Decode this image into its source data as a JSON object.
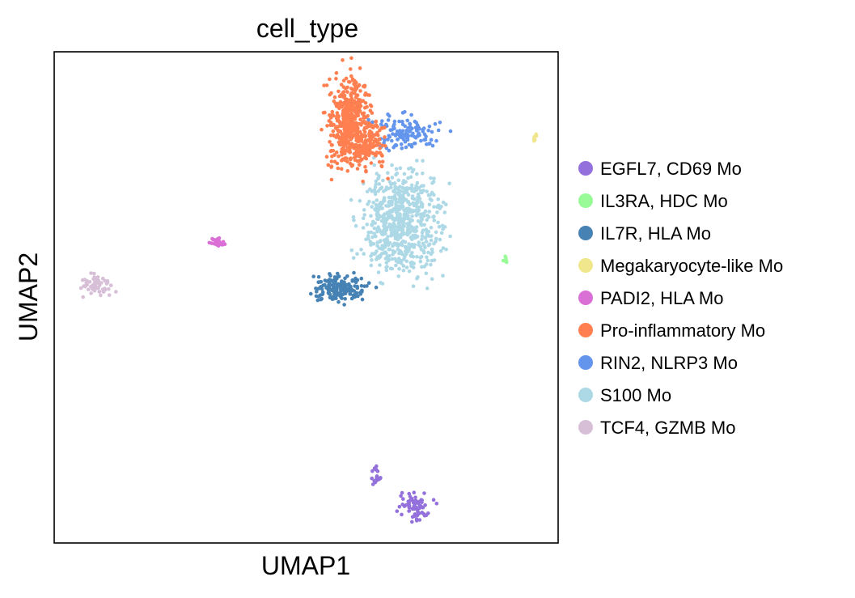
{
  "chart_data": {
    "type": "scatter",
    "title": "cell_type",
    "xlabel": "UMAP1",
    "ylabel": "UMAP2",
    "grid": false,
    "xticks": [],
    "yticks": [],
    "legend_position": "right",
    "xlim": [
      0,
      100
    ],
    "ylim": [
      0,
      100
    ],
    "series": [
      {
        "name": "EGFL7, CD69 Mo",
        "color": "#9370DB",
        "clusters": [
          {
            "cx": 71.5,
            "cy": 7.3,
            "sx": 2.2,
            "sy": 1.9,
            "n": 70
          },
          {
            "cx": 64.0,
            "cy": 13.8,
            "sx": 0.6,
            "sy": 1.4,
            "n": 18
          }
        ]
      },
      {
        "name": "IL3RA, HDC Mo",
        "color": "#98FB98",
        "clusters": [
          {
            "cx": 89.5,
            "cy": 57.6,
            "sx": 0.3,
            "sy": 0.4,
            "n": 6
          }
        ]
      },
      {
        "name": "IL7R, HLA Mo",
        "color": "#4682B4",
        "clusters": [
          {
            "cx": 56.7,
            "cy": 52.0,
            "sx": 3.8,
            "sy": 2.0,
            "n": 170
          }
        ]
      },
      {
        "name": "Megakaryocyte-like Mo",
        "color": "#F0E68C",
        "clusters": [
          {
            "cx": 95.3,
            "cy": 82.5,
            "sx": 0.3,
            "sy": 0.4,
            "n": 6
          }
        ]
      },
      {
        "name": "PADI2, HLA Mo",
        "color": "#DA70D6",
        "clusters": [
          {
            "cx": 32.5,
            "cy": 61.2,
            "sx": 1.1,
            "sy": 0.7,
            "n": 25
          }
        ]
      },
      {
        "name": "Pro-inflammatory Mo",
        "color": "#FF7F50",
        "clusters": [
          {
            "cx": 58.7,
            "cy": 85.5,
            "sx": 3.0,
            "sy": 6.5,
            "n": 520
          },
          {
            "cx": 63.0,
            "cy": 81.5,
            "sx": 2.0,
            "sy": 3.5,
            "n": 90
          }
        ]
      },
      {
        "name": "RIN2, NLRP3 Mo",
        "color": "#6495ED",
        "clusters": [
          {
            "cx": 69.5,
            "cy": 83.7,
            "sx": 5.0,
            "sy": 2.5,
            "n": 130
          }
        ]
      },
      {
        "name": "S100 Mo",
        "color": "#ADD8E6",
        "clusters": [
          {
            "cx": 69.0,
            "cy": 65.0,
            "sx": 5.5,
            "sy": 7.5,
            "n": 650
          }
        ]
      },
      {
        "name": "TCF4, GZMB Mo",
        "color": "#D8BFD8",
        "clusters": [
          {
            "cx": 8.3,
            "cy": 52.5,
            "sx": 1.9,
            "sy": 1.6,
            "n": 60
          }
        ]
      }
    ]
  }
}
